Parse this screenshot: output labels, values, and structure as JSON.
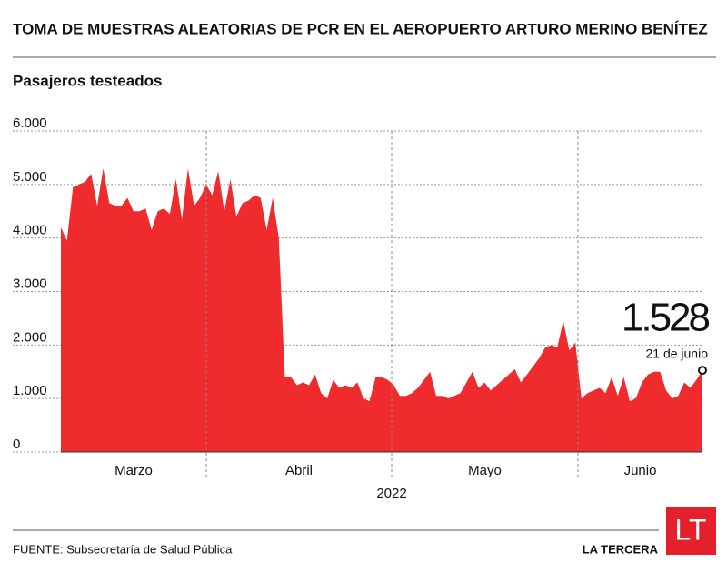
{
  "chart_data": {
    "type": "area",
    "title": "TOMA DE MUESTRAS ALEATORIAS DE PCR EN EL AEROPUERTO ARTURO MERINO BENÍTEZ",
    "subtitle": "Pasajeros testeados",
    "months": [
      "Marzo",
      "Abril",
      "Mayo",
      "Junio"
    ],
    "year_label": "2022",
    "series": [
      {
        "name": "Pasajeros testeados",
        "color": "#ef2b2d",
        "values": [
          4200,
          3950,
          4950,
          5000,
          5050,
          5200,
          4600,
          5300,
          4650,
          4600,
          4600,
          4750,
          4500,
          4500,
          4550,
          4150,
          4500,
          4550,
          4450,
          5100,
          4350,
          5300,
          4600,
          4750,
          5000,
          4800,
          5250,
          4500,
          5100,
          4400,
          4650,
          4700,
          4800,
          4750,
          4150,
          4750,
          4000,
          1400,
          1400,
          1250,
          1300,
          1250,
          1450,
          1100,
          1000,
          1350,
          1200,
          1250,
          1200,
          1300,
          1000,
          950,
          1400,
          1400,
          1350,
          1250,
          1050,
          1050,
          1100,
          1200,
          1350,
          1500,
          1050,
          1050,
          1000,
          1050,
          1100,
          1300,
          1500,
          1200,
          1300,
          1150,
          1250,
          1350,
          1450,
          1550,
          1300,
          1450,
          1600,
          1750,
          1950,
          2000,
          1950,
          2450,
          1900,
          2050,
          1000,
          1100,
          1150,
          1200,
          1100,
          1400,
          1050,
          1400,
          950,
          1000,
          1300,
          1450,
          1500,
          1500,
          1150,
          1000,
          1050,
          1300,
          1200,
          1350,
          1528
        ]
      }
    ],
    "end_label": {
      "value": "1.528",
      "date": "21 de junio"
    },
    "ylim": [
      0,
      6000
    ],
    "yticks": [
      0,
      {
        "value": 1000,
        "label": "1.000"
      },
      {
        "value": 2000,
        "label": "2.000"
      },
      {
        "value": 3000,
        "label": "3.000"
      },
      {
        "value": 4000,
        "label": "4.000"
      },
      {
        "value": 5000,
        "label": "5.000"
      },
      {
        "value": 6000,
        "label": "6.000"
      }
    ],
    "grid": true,
    "source": "FUENTE: Subsecretaría de Salud Pública",
    "brand": "LA TERCERA",
    "logo": "LT"
  }
}
